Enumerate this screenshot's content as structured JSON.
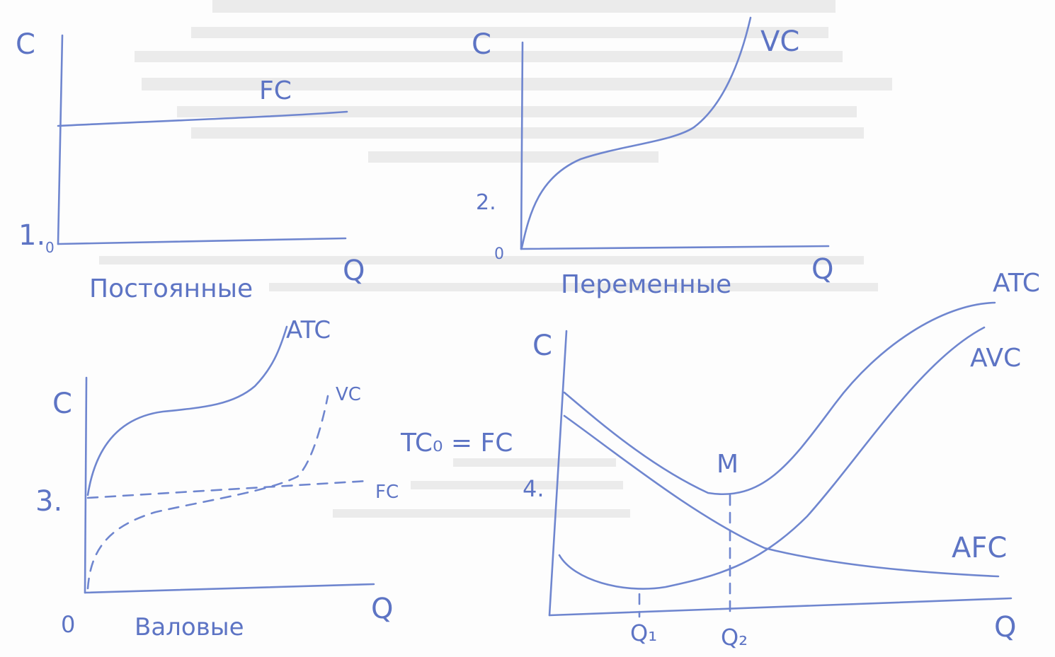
{
  "panels": [
    {
      "number": "1.",
      "y_axis": "C",
      "x_axis": "Q",
      "origin": "0",
      "curves": [
        "FC"
      ],
      "caption": "Постоянные"
    },
    {
      "number": "2.",
      "y_axis": "C",
      "x_axis": "Q",
      "origin": "0",
      "curves": [
        "VC"
      ],
      "caption": "Переменные"
    },
    {
      "number": "3.",
      "y_axis": "C",
      "x_axis": "Q",
      "origin": "0",
      "curves": [
        "ATC",
        "VC",
        "FC"
      ],
      "caption": "Валовые",
      "note": "TC₀ = FC"
    },
    {
      "number": "4.",
      "y_axis": "C",
      "x_axis": "Q",
      "curves": [
        "ATC",
        "AVC",
        "AFC"
      ],
      "point": "M",
      "ticks": [
        "Q₁",
        "Q₂"
      ]
    }
  ],
  "ink_color": "#6f86cf"
}
